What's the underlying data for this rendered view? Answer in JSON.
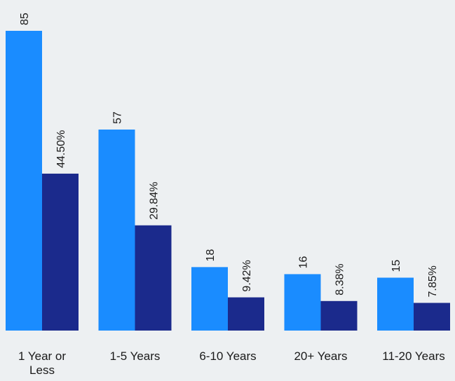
{
  "chart_data": {
    "type": "bar",
    "categories": [
      "1 Year or Less",
      "1-5 Years",
      "6-10 Years",
      "20+ Years",
      "11-20 Years"
    ],
    "category_lines": [
      [
        "1 Year or",
        "Less"
      ],
      [
        "1-5 Years"
      ],
      [
        "6-10 Years"
      ],
      [
        "20+ Years"
      ],
      [
        "11-20 Years"
      ]
    ],
    "series": [
      {
        "values": [
          85,
          57,
          18,
          16,
          15
        ],
        "labels": [
          "85",
          "57",
          "18",
          "16",
          "15"
        ],
        "color": "#1a8cff"
      },
      {
        "values": [
          44.5,
          29.84,
          9.42,
          8.38,
          7.85
        ],
        "labels": [
          "44.50%",
          "29.84%",
          "9.42%",
          "8.38%",
          "7.85%"
        ],
        "color": "#1b2a8c"
      }
    ],
    "title": "",
    "xlabel": "",
    "ylabel": "",
    "ylim": [
      0,
      85
    ],
    "grid": false,
    "legend": "none"
  }
}
